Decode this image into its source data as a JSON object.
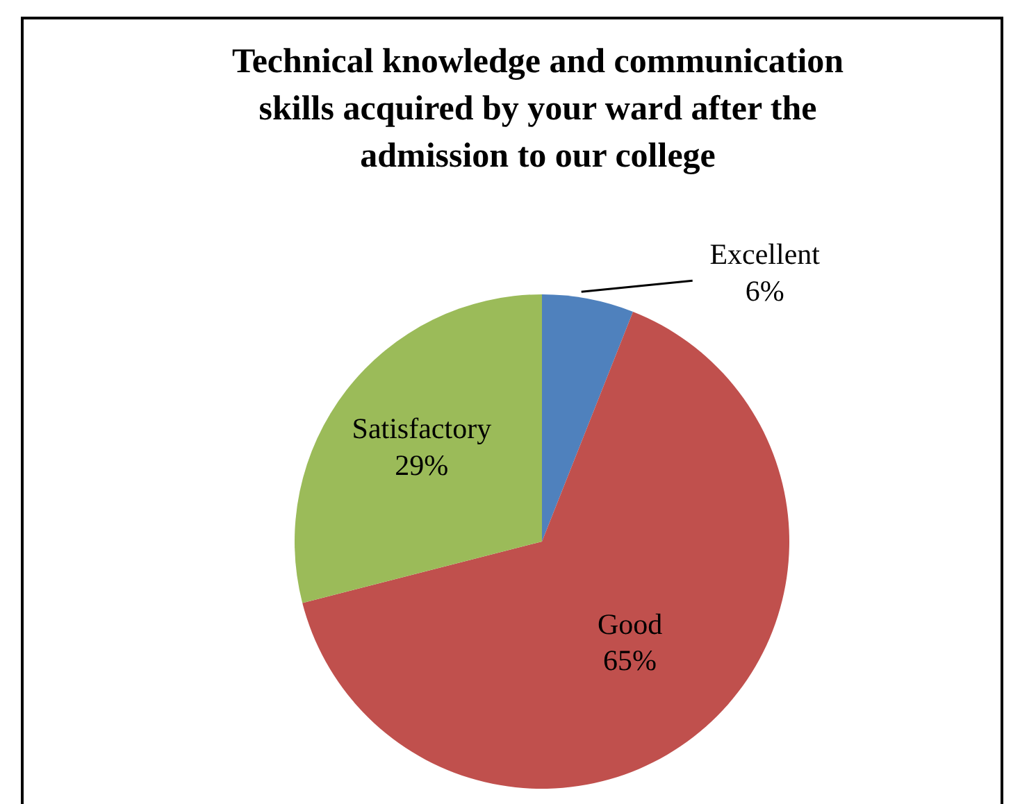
{
  "chart_data": {
    "type": "pie",
    "title": "Technical knowledge and communication skills acquired by your ward after the admission to our college",
    "categories": [
      "Excellent",
      "Good",
      "Satisfactory"
    ],
    "values": [
      6,
      65,
      29
    ],
    "value_labels": [
      "6%",
      "65%",
      "29%"
    ],
    "colors": [
      "#4f81bd",
      "#c0504d",
      "#9bbb59"
    ]
  }
}
